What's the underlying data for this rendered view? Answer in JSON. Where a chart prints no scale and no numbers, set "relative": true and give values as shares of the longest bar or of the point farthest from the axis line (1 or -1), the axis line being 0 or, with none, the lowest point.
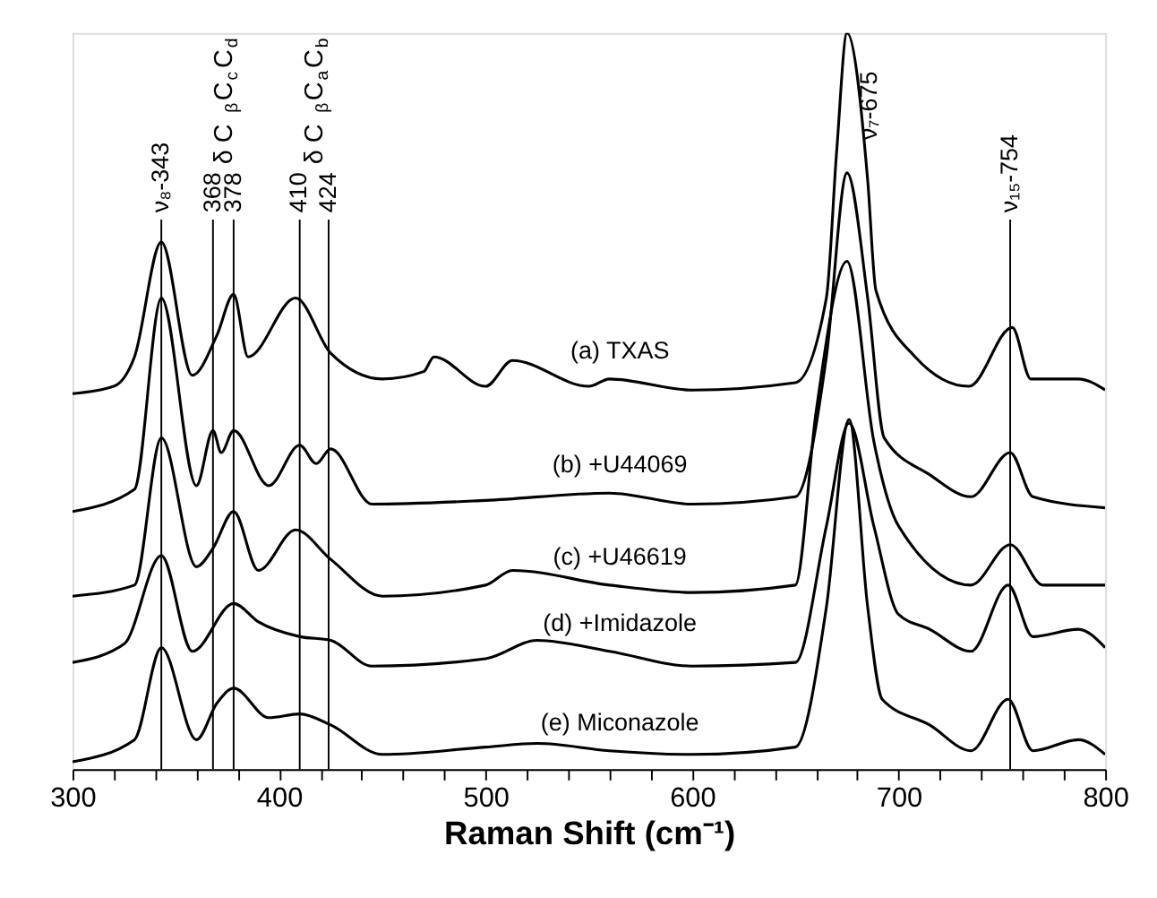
{
  "chart_data": {
    "type": "line",
    "relative": true,
    "xlabel": "Raman Shift (cm⁻¹)",
    "xlim": [
      300,
      800
    ],
    "xticks": [
      300,
      {
        "value": 320,
        "label": null
      },
      {
        "value": 340,
        "label": null
      },
      {
        "value": 360,
        "label": null
      },
      {
        "value": 380,
        "label": null
      },
      400,
      {
        "value": 420,
        "label": null
      },
      {
        "value": 440,
        "label": null
      },
      {
        "value": 460,
        "label": null
      },
      {
        "value": 480,
        "label": null
      },
      500,
      {
        "value": 520,
        "label": null
      },
      {
        "value": 540,
        "label": null
      },
      {
        "value": 560,
        "label": null
      },
      {
        "value": 580,
        "label": null
      },
      600,
      {
        "value": 620,
        "label": null
      },
      {
        "value": 640,
        "label": null
      },
      {
        "value": 660,
        "label": null
      },
      {
        "value": 680,
        "label": null
      },
      700,
      {
        "value": 720,
        "label": null
      },
      {
        "value": 740,
        "label": null
      },
      {
        "value": 760,
        "label": null
      },
      {
        "value": 780,
        "label": null
      },
      800
    ],
    "grid": false,
    "legend": false,
    "marker": "none",
    "line_style": "solid",
    "series": [
      {
        "name": "(a) TXAS",
        "color": "#000000",
        "x": [
          300,
          320,
          330,
          343,
          358,
          370,
          378,
          385,
          408,
          425,
          450,
          470,
          475,
          500,
          513,
          550,
          560,
          600,
          650,
          665,
          670,
          675,
          685,
          689,
          708,
          734,
          755,
          764,
          787,
          800
        ],
        "values": [
          0.51,
          0.52,
          0.56,
          0.716,
          0.535,
          0.59,
          0.645,
          0.56,
          0.64,
          0.565,
          0.53,
          0.54,
          0.56,
          0.52,
          0.555,
          0.52,
          0.53,
          0.515,
          0.525,
          0.64,
          0.84,
          1,
          0.8,
          0.65,
          0.56,
          0.52,
          0.6,
          0.53,
          0.53,
          0.515
        ]
      },
      {
        "name": "(b) +U44069",
        "color": "#000000",
        "x": [
          300,
          330,
          343,
          360,
          368,
          372,
          378,
          395,
          410,
          418,
          425,
          445,
          500,
          560,
          600,
          650,
          665,
          675,
          685,
          693,
          715,
          735,
          754,
          765,
          800
        ],
        "values": [
          0.35,
          0.38,
          0.64,
          0.385,
          0.46,
          0.43,
          0.46,
          0.385,
          0.44,
          0.415,
          0.435,
          0.36,
          0.365,
          0.375,
          0.36,
          0.37,
          0.56,
          0.81,
          0.64,
          0.45,
          0.4,
          0.37,
          0.43,
          0.37,
          0.355
        ]
      },
      {
        "name": "(c) +U46619",
        "color": "#000000",
        "x": [
          300,
          330,
          343,
          360,
          368,
          378,
          390,
          408,
          425,
          450,
          500,
          513,
          560,
          600,
          650,
          660,
          675,
          688,
          700,
          735,
          754,
          770,
          800
        ],
        "values": [
          0.235,
          0.25,
          0.45,
          0.275,
          0.3,
          0.35,
          0.27,
          0.325,
          0.285,
          0.235,
          0.25,
          0.27,
          0.25,
          0.24,
          0.25,
          0.485,
          0.69,
          0.445,
          0.33,
          0.25,
          0.305,
          0.25,
          0.25
        ]
      },
      {
        "name": "(d) +Imidazole",
        "color": "#000000",
        "x": [
          300,
          325,
          343,
          358,
          378,
          390,
          410,
          425,
          445,
          500,
          525,
          560,
          600,
          650,
          665,
          676,
          688,
          700,
          715,
          735,
          753,
          765,
          787,
          800
        ],
        "values": [
          0.145,
          0.17,
          0.29,
          0.16,
          0.225,
          0.2,
          0.18,
          0.175,
          0.14,
          0.15,
          0.175,
          0.16,
          0.14,
          0.145,
          0.33,
          0.47,
          0.33,
          0.21,
          0.19,
          0.16,
          0.25,
          0.18,
          0.19,
          0.165
        ]
      },
      {
        "name": "(e) Miconazole",
        "color": "#000000",
        "x": [
          300,
          330,
          343,
          360,
          370,
          378,
          395,
          410,
          425,
          450,
          500,
          525,
          560,
          600,
          650,
          665,
          676,
          685,
          692,
          715,
          735,
          753,
          765,
          787,
          800
        ],
        "values": [
          0.01,
          0.04,
          0.165,
          0.04,
          0.09,
          0.11,
          0.07,
          0.075,
          0.06,
          0.02,
          0.03,
          0.035,
          0.025,
          0.02,
          0.03,
          0.22,
          0.475,
          0.22,
          0.095,
          0.06,
          0.025,
          0.095,
          0.025,
          0.04,
          0.02
        ]
      }
    ],
    "ref_lines": [
      {
        "axis": "x",
        "value": 343,
        "label": "ν₈-343",
        "color": "#000000"
      },
      {
        "axis": "x",
        "value": 368,
        "label": "368",
        "color": "#000000"
      },
      {
        "axis": "x",
        "value": 378,
        "label": "378",
        "color": "#000000"
      },
      {
        "axis": "x",
        "value": 410,
        "label": "410",
        "color": "#000000"
      },
      {
        "axis": "x",
        "value": 424,
        "label": "424",
        "color": "#000000"
      },
      {
        "axis": "x",
        "value": 754,
        "label": "ν₁₅-754",
        "color": "#000000"
      }
    ],
    "annotations": [
      "δ C$_{β}$C$_{c}$C$_{d}$",
      "δ C$_{β}$C$_{a}$C$_{b}$",
      {
        "text": "ν₇-675",
        "x": 675
      }
    ]
  }
}
